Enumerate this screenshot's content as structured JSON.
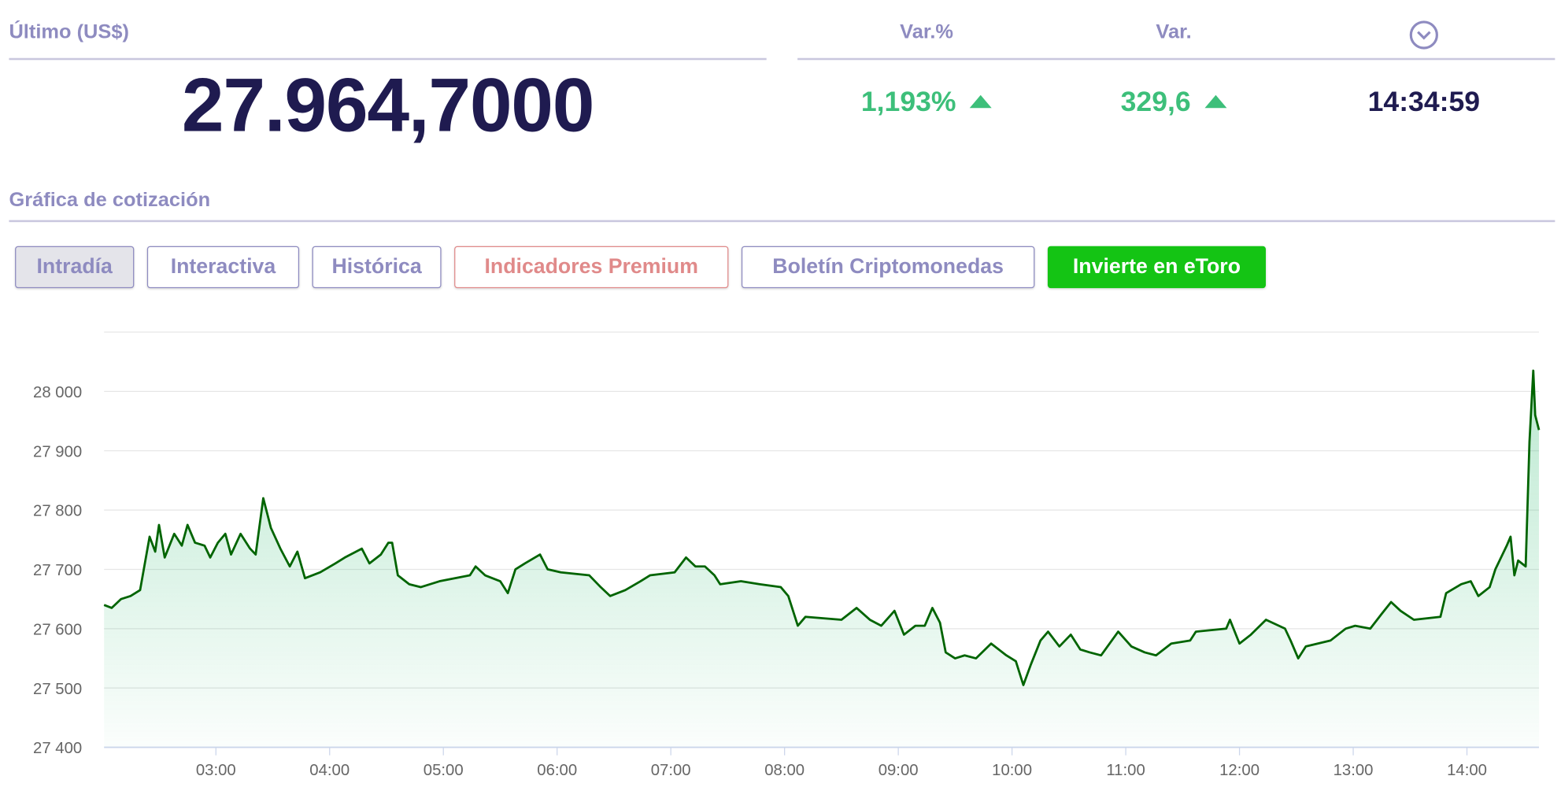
{
  "quote": {
    "last_label": "Último (US$)",
    "last_value": "27.964,7000",
    "var_pct_label": "Var.%",
    "var_pct_value": "1,193%",
    "var_label": "Var.",
    "var_value": "329,6",
    "time_icon": "clock-chevron-icon",
    "time_value": "14:34:59",
    "direction": "up"
  },
  "section_title": "Gráfica de cotización",
  "tabs": [
    {
      "label": "Intradía",
      "active": true
    },
    {
      "label": "Interactiva"
    },
    {
      "label": "Histórica"
    },
    {
      "label": "Indicadores Premium"
    },
    {
      "label": "Boletín Criptomonedas"
    },
    {
      "label": "Invierte en eToro"
    }
  ],
  "colors": {
    "navy": "#1f1b50",
    "label": "#8e8bc0",
    "positive": "#3dbf7a",
    "line": "#006400",
    "cta": "#14c414",
    "premium": "#e08a8a"
  },
  "chart_data": {
    "type": "area",
    "ylim": [
      27400,
      28100
    ],
    "yticks": [
      "27 400",
      "27 500",
      "27 600",
      "27 700",
      "27 800",
      "27 900",
      "28 000"
    ],
    "ytick_values": [
      27400,
      27500,
      27600,
      27700,
      27800,
      27900,
      28000
    ],
    "xticks": [
      "03:00",
      "04:00",
      "05:00",
      "06:00",
      "07:00",
      "08:00",
      "09:00",
      "10:00",
      "11:00",
      "12:00",
      "13:00",
      "14:00"
    ],
    "xlim": [
      "02:01",
      "14:38"
    ],
    "grid": true,
    "points": [
      [
        "02:01",
        27640
      ],
      [
        "02:05",
        27635
      ],
      [
        "02:10",
        27650
      ],
      [
        "02:15",
        27655
      ],
      [
        "02:20",
        27665
      ],
      [
        "02:25",
        27755
      ],
      [
        "02:28",
        27730
      ],
      [
        "02:30",
        27775
      ],
      [
        "02:33",
        27720
      ],
      [
        "02:38",
        27760
      ],
      [
        "02:42",
        27740
      ],
      [
        "02:45",
        27775
      ],
      [
        "02:49",
        27745
      ],
      [
        "02:54",
        27740
      ],
      [
        "02:57",
        27720
      ],
      [
        "03:01",
        27745
      ],
      [
        "03:05",
        27760
      ],
      [
        "03:08",
        27725
      ],
      [
        "03:13",
        27760
      ],
      [
        "03:18",
        27735
      ],
      [
        "03:21",
        27725
      ],
      [
        "03:25",
        27820
      ],
      [
        "03:29",
        27770
      ],
      [
        "03:34",
        27735
      ],
      [
        "03:39",
        27705
      ],
      [
        "03:43",
        27730
      ],
      [
        "03:47",
        27685
      ],
      [
        "03:55",
        27695
      ],
      [
        "04:03",
        27710
      ],
      [
        "04:08",
        27720
      ],
      [
        "04:17",
        27735
      ],
      [
        "04:21",
        27710
      ],
      [
        "04:27",
        27725
      ],
      [
        "04:31",
        27745
      ],
      [
        "04:33",
        27745
      ],
      [
        "04:36",
        27690
      ],
      [
        "04:42",
        27675
      ],
      [
        "04:48",
        27670
      ],
      [
        "04:58",
        27680
      ],
      [
        "05:14",
        27690
      ],
      [
        "05:17",
        27705
      ],
      [
        "05:22",
        27690
      ],
      [
        "05:30",
        27680
      ],
      [
        "05:34",
        27660
      ],
      [
        "05:38",
        27700
      ],
      [
        "05:43",
        27710
      ],
      [
        "05:51",
        27725
      ],
      [
        "05:55",
        27700
      ],
      [
        "06:02",
        27695
      ],
      [
        "06:17",
        27690
      ],
      [
        "06:23",
        27670
      ],
      [
        "06:28",
        27655
      ],
      [
        "06:36",
        27665
      ],
      [
        "06:44",
        27680
      ],
      [
        "06:49",
        27690
      ],
      [
        "07:02",
        27695
      ],
      [
        "07:08",
        27720
      ],
      [
        "07:13",
        27705
      ],
      [
        "07:18",
        27705
      ],
      [
        "07:23",
        27690
      ],
      [
        "07:26",
        27675
      ],
      [
        "07:37",
        27680
      ],
      [
        "07:47",
        27675
      ],
      [
        "07:58",
        27670
      ],
      [
        "08:02",
        27655
      ],
      [
        "08:07",
        27605
      ],
      [
        "08:11",
        27620
      ],
      [
        "08:30",
        27615
      ],
      [
        "08:38",
        27635
      ],
      [
        "08:45",
        27615
      ],
      [
        "08:51",
        27605
      ],
      [
        "08:58",
        27630
      ],
      [
        "09:03",
        27590
      ],
      [
        "09:09",
        27605
      ],
      [
        "09:14",
        27605
      ],
      [
        "09:18",
        27635
      ],
      [
        "09:22",
        27610
      ],
      [
        "09:25",
        27560
      ],
      [
        "09:30",
        27550
      ],
      [
        "09:35",
        27555
      ],
      [
        "09:41",
        27550
      ],
      [
        "09:49",
        27575
      ],
      [
        "09:57",
        27555
      ],
      [
        "10:02",
        27545
      ],
      [
        "10:06",
        27505
      ],
      [
        "10:10",
        27540
      ],
      [
        "10:15",
        27580
      ],
      [
        "10:19",
        27595
      ],
      [
        "10:25",
        27570
      ],
      [
        "10:31",
        27590
      ],
      [
        "10:36",
        27565
      ],
      [
        "10:41",
        27560
      ],
      [
        "10:47",
        27555
      ],
      [
        "10:56",
        27595
      ],
      [
        "11:03",
        27570
      ],
      [
        "11:10",
        27560
      ],
      [
        "11:16",
        27555
      ],
      [
        "11:24",
        27575
      ],
      [
        "11:34",
        27580
      ],
      [
        "11:37",
        27595
      ],
      [
        "11:53",
        27600
      ],
      [
        "11:55",
        27615
      ],
      [
        "12:00",
        27575
      ],
      [
        "12:06",
        27590
      ],
      [
        "12:14",
        27615
      ],
      [
        "12:24",
        27600
      ],
      [
        "12:27",
        27580
      ],
      [
        "12:31",
        27550
      ],
      [
        "12:35",
        27570
      ],
      [
        "12:48",
        27580
      ],
      [
        "12:56",
        27600
      ],
      [
        "13:01",
        27605
      ],
      [
        "13:09",
        27600
      ],
      [
        "13:15",
        27625
      ],
      [
        "13:20",
        27645
      ],
      [
        "13:25",
        27630
      ],
      [
        "13:32",
        27615
      ],
      [
        "13:46",
        27620
      ],
      [
        "13:49",
        27660
      ],
      [
        "13:57",
        27675
      ],
      [
        "14:02",
        27680
      ],
      [
        "14:06",
        27655
      ],
      [
        "14:12",
        27670
      ],
      [
        "14:15",
        27700
      ],
      [
        "14:21",
        27740
      ],
      [
        "14:23",
        27755
      ],
      [
        "14:25",
        27690
      ],
      [
        "14:27",
        27715
      ],
      [
        "14:31",
        27705
      ],
      [
        "14:33",
        27915
      ],
      [
        "14:35",
        28035
      ],
      [
        "14:36",
        27960
      ],
      [
        "14:38",
        27935
      ]
    ]
  }
}
